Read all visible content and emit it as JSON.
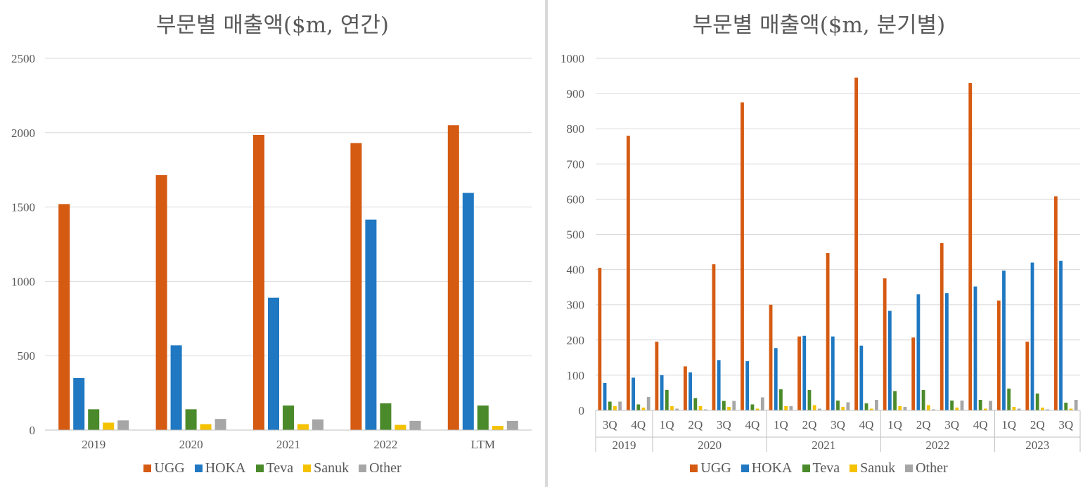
{
  "colors": {
    "UGG": "#d55a12",
    "HOKA": "#1f78c1",
    "Teva": "#4a8a2a",
    "Sanuk": "#f5c200",
    "Other": "#a6a6a6"
  },
  "chart_data": [
    {
      "type": "bar",
      "title": "부문별 매출액($m, 연간)",
      "categories": [
        "2019",
        "2020",
        "2021",
        "2022",
        "LTM"
      ],
      "ylim": [
        0,
        2500
      ],
      "yticks": [
        "0",
        "500",
        "1000",
        "1500",
        "2000",
        "2500"
      ],
      "grid": true,
      "legend": "bottom",
      "series": [
        {
          "name": "UGG",
          "values": [
            1520,
            1715,
            1985,
            1930,
            2050
          ]
        },
        {
          "name": "HOKA",
          "values": [
            350,
            570,
            890,
            1415,
            1595
          ]
        },
        {
          "name": "Teva",
          "values": [
            140,
            140,
            165,
            180,
            165
          ]
        },
        {
          "name": "Sanuk",
          "values": [
            50,
            40,
            40,
            35,
            28
          ]
        },
        {
          "name": "Other",
          "values": [
            65,
            75,
            72,
            62,
            62
          ]
        }
      ]
    },
    {
      "type": "bar",
      "title": "부문별 매출액($m, 분기별)",
      "categories": [
        "3Q",
        "4Q",
        "1Q",
        "2Q",
        "3Q",
        "4Q",
        "1Q",
        "2Q",
        "3Q",
        "4Q",
        "1Q",
        "2Q",
        "3Q",
        "4Q",
        "1Q",
        "2Q",
        "3Q"
      ],
      "groups": [
        {
          "label": "2019",
          "count": 2
        },
        {
          "label": "2020",
          "count": 4
        },
        {
          "label": "2021",
          "count": 4
        },
        {
          "label": "2022",
          "count": 4
        },
        {
          "label": "2023",
          "count": 3
        }
      ],
      "ylim": [
        0,
        1000
      ],
      "yticks": [
        "0",
        "100",
        "200",
        "300",
        "400",
        "500",
        "600",
        "700",
        "800",
        "900",
        "1000"
      ],
      "grid": true,
      "legend": "bottom",
      "series": [
        {
          "name": "UGG",
          "values": [
            405,
            780,
            195,
            125,
            415,
            875,
            300,
            210,
            447,
            945,
            375,
            207,
            475,
            930,
            312,
            195,
            608
          ]
        },
        {
          "name": "HOKA",
          "values": [
            78,
            93,
            100,
            108,
            143,
            140,
            177,
            212,
            210,
            184,
            283,
            330,
            333,
            352,
            397,
            420,
            425
          ]
        },
        {
          "name": "Teva",
          "values": [
            25,
            17,
            58,
            35,
            27,
            17,
            60,
            58,
            28,
            20,
            55,
            58,
            28,
            30,
            62,
            48,
            22
          ]
        },
        {
          "name": "Sanuk",
          "values": [
            12,
            8,
            12,
            12,
            10,
            5,
            12,
            15,
            10,
            5,
            12,
            15,
            8,
            5,
            10,
            8,
            5
          ]
        },
        {
          "name": "Other",
          "values": [
            25,
            38,
            5,
            3,
            27,
            37,
            12,
            5,
            23,
            30,
            10,
            3,
            28,
            27,
            5,
            3,
            30
          ]
        }
      ]
    }
  ]
}
